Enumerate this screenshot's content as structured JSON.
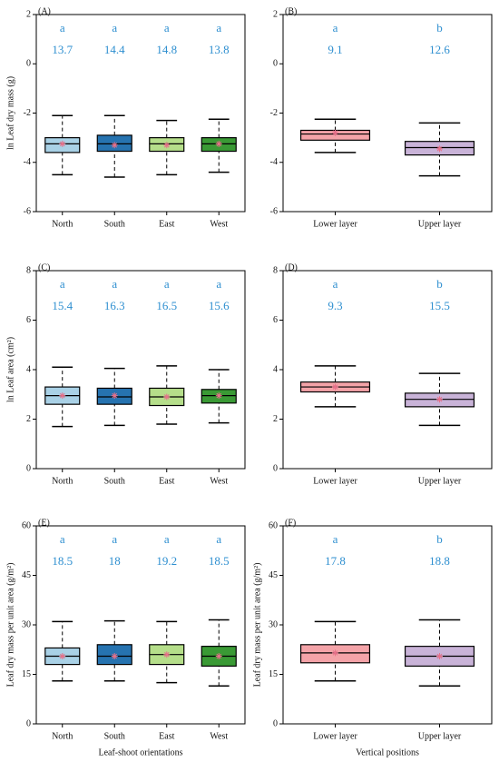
{
  "chart_data": [
    {
      "type": "box",
      "panel": "(A)",
      "ylabel": "ln Leaf dry mass (g)",
      "ylim": [
        -6,
        2
      ],
      "yticks": [
        -6,
        -4,
        -2,
        0,
        2
      ],
      "categories": [
        "North",
        "South",
        "East",
        "West"
      ],
      "colors": [
        "#a9d1e6",
        "#2673b0",
        "#b5de8a",
        "#3a9a35"
      ],
      "letters": [
        "a",
        "a",
        "a",
        "a"
      ],
      "group_values": [
        13.7,
        14.4,
        14.8,
        13.8
      ],
      "boxes": [
        {
          "low": -4.5,
          "q1": -3.6,
          "median": -3.25,
          "q3": -3.0,
          "high": -2.1,
          "mean": -3.25
        },
        {
          "low": -4.6,
          "q1": -3.55,
          "median": -3.25,
          "q3": -2.9,
          "high": -2.1,
          "mean": -3.3
        },
        {
          "low": -4.5,
          "q1": -3.55,
          "median": -3.25,
          "q3": -3.0,
          "high": -2.3,
          "mean": -3.3
        },
        {
          "low": -4.4,
          "q1": -3.55,
          "median": -3.25,
          "q3": -3.0,
          "high": -2.25,
          "mean": -3.25
        }
      ]
    },
    {
      "type": "box",
      "panel": "(B)",
      "ylim": [
        -6,
        2
      ],
      "yticks": [
        -6,
        -4,
        -2,
        0,
        2
      ],
      "categories": [
        "Lower layer",
        "Upper layer"
      ],
      "colors": [
        "#f4a3a8",
        "#c9b3d8"
      ],
      "letters": [
        "a",
        "b"
      ],
      "group_values": [
        9.1,
        12.6
      ],
      "boxes": [
        {
          "low": -3.6,
          "q1": -3.1,
          "median": -2.85,
          "q3": -2.7,
          "high": -2.25,
          "mean": -2.8
        },
        {
          "low": -4.55,
          "q1": -3.7,
          "median": -3.4,
          "q3": -3.15,
          "high": -2.4,
          "mean": -3.45
        }
      ]
    },
    {
      "type": "box",
      "panel": "(C)",
      "ylabel": "ln Leaf area (cm²)",
      "ylim": [
        0,
        8
      ],
      "yticks": [
        0,
        2,
        4,
        6,
        8
      ],
      "categories": [
        "North",
        "South",
        "East",
        "West"
      ],
      "colors": [
        "#a9d1e6",
        "#2673b0",
        "#b5de8a",
        "#3a9a35"
      ],
      "letters": [
        "a",
        "a",
        "a",
        "a"
      ],
      "group_values": [
        15.4,
        16.3,
        16.5,
        15.6
      ],
      "boxes": [
        {
          "low": 1.7,
          "q1": 2.6,
          "median": 2.95,
          "q3": 3.3,
          "high": 4.1,
          "mean": 2.95
        },
        {
          "low": 1.75,
          "q1": 2.6,
          "median": 2.9,
          "q3": 3.25,
          "high": 4.05,
          "mean": 2.95
        },
        {
          "low": 1.8,
          "q1": 2.55,
          "median": 2.9,
          "q3": 3.25,
          "high": 4.15,
          "mean": 2.9
        },
        {
          "low": 1.85,
          "q1": 2.65,
          "median": 2.95,
          "q3": 3.2,
          "high": 4.0,
          "mean": 2.95
        }
      ]
    },
    {
      "type": "box",
      "panel": "(D)",
      "ylim": [
        0,
        8
      ],
      "yticks": [
        0,
        2,
        4,
        6,
        8
      ],
      "categories": [
        "Lower layer",
        "Upper layer"
      ],
      "colors": [
        "#f4a3a8",
        "#c9b3d8"
      ],
      "letters": [
        "a",
        "b"
      ],
      "group_values": [
        9.3,
        15.5
      ],
      "boxes": [
        {
          "low": 2.5,
          "q1": 3.1,
          "median": 3.3,
          "q3": 3.5,
          "high": 4.15,
          "mean": 3.3
        },
        {
          "low": 1.75,
          "q1": 2.5,
          "median": 2.8,
          "q3": 3.05,
          "high": 3.85,
          "mean": 2.8
        }
      ]
    },
    {
      "type": "box",
      "panel": "(E)",
      "ylabel": "Leaf dry mass per unit area (g/m²)",
      "xlabel": "Leaf-shoot orientations",
      "ylim": [
        0,
        60
      ],
      "yticks": [
        0,
        15,
        30,
        45,
        60
      ],
      "categories": [
        "North",
        "South",
        "East",
        "West"
      ],
      "colors": [
        "#a9d1e6",
        "#2673b0",
        "#b5de8a",
        "#3a9a35"
      ],
      "letters": [
        "a",
        "a",
        "a",
        "a"
      ],
      "group_values": [
        18.5,
        18,
        19.2,
        18.5
      ],
      "boxes": [
        {
          "low": 13,
          "q1": 18,
          "median": 20.5,
          "q3": 23,
          "high": 31,
          "mean": 20.5
        },
        {
          "low": 13,
          "q1": 18,
          "median": 20.5,
          "q3": 24,
          "high": 31.2,
          "mean": 20.5
        },
        {
          "low": 12.5,
          "q1": 18,
          "median": 21,
          "q3": 24,
          "high": 31,
          "mean": 21
        },
        {
          "low": 11.5,
          "q1": 17.5,
          "median": 20.5,
          "q3": 23.5,
          "high": 31.5,
          "mean": 20.5
        }
      ]
    },
    {
      "type": "box",
      "panel": "(F)",
      "ylabel": "Leaf dry mass per unit area (g/m²)",
      "xlabel": "Vertical positions",
      "ylim": [
        0,
        60
      ],
      "yticks": [
        0,
        15,
        30,
        45,
        60
      ],
      "categories": [
        "Lower layer",
        "Upper layer"
      ],
      "colors": [
        "#f4a3a8",
        "#c9b3d8"
      ],
      "letters": [
        "a",
        "b"
      ],
      "group_values": [
        17.8,
        18.8
      ],
      "boxes": [
        {
          "low": 13,
          "q1": 18.5,
          "median": 21.5,
          "q3": 24,
          "high": 31,
          "mean": 21.5
        },
        {
          "low": 11.5,
          "q1": 17.5,
          "median": 20.5,
          "q3": 23.5,
          "high": 31.5,
          "mean": 20.5
        }
      ]
    }
  ]
}
